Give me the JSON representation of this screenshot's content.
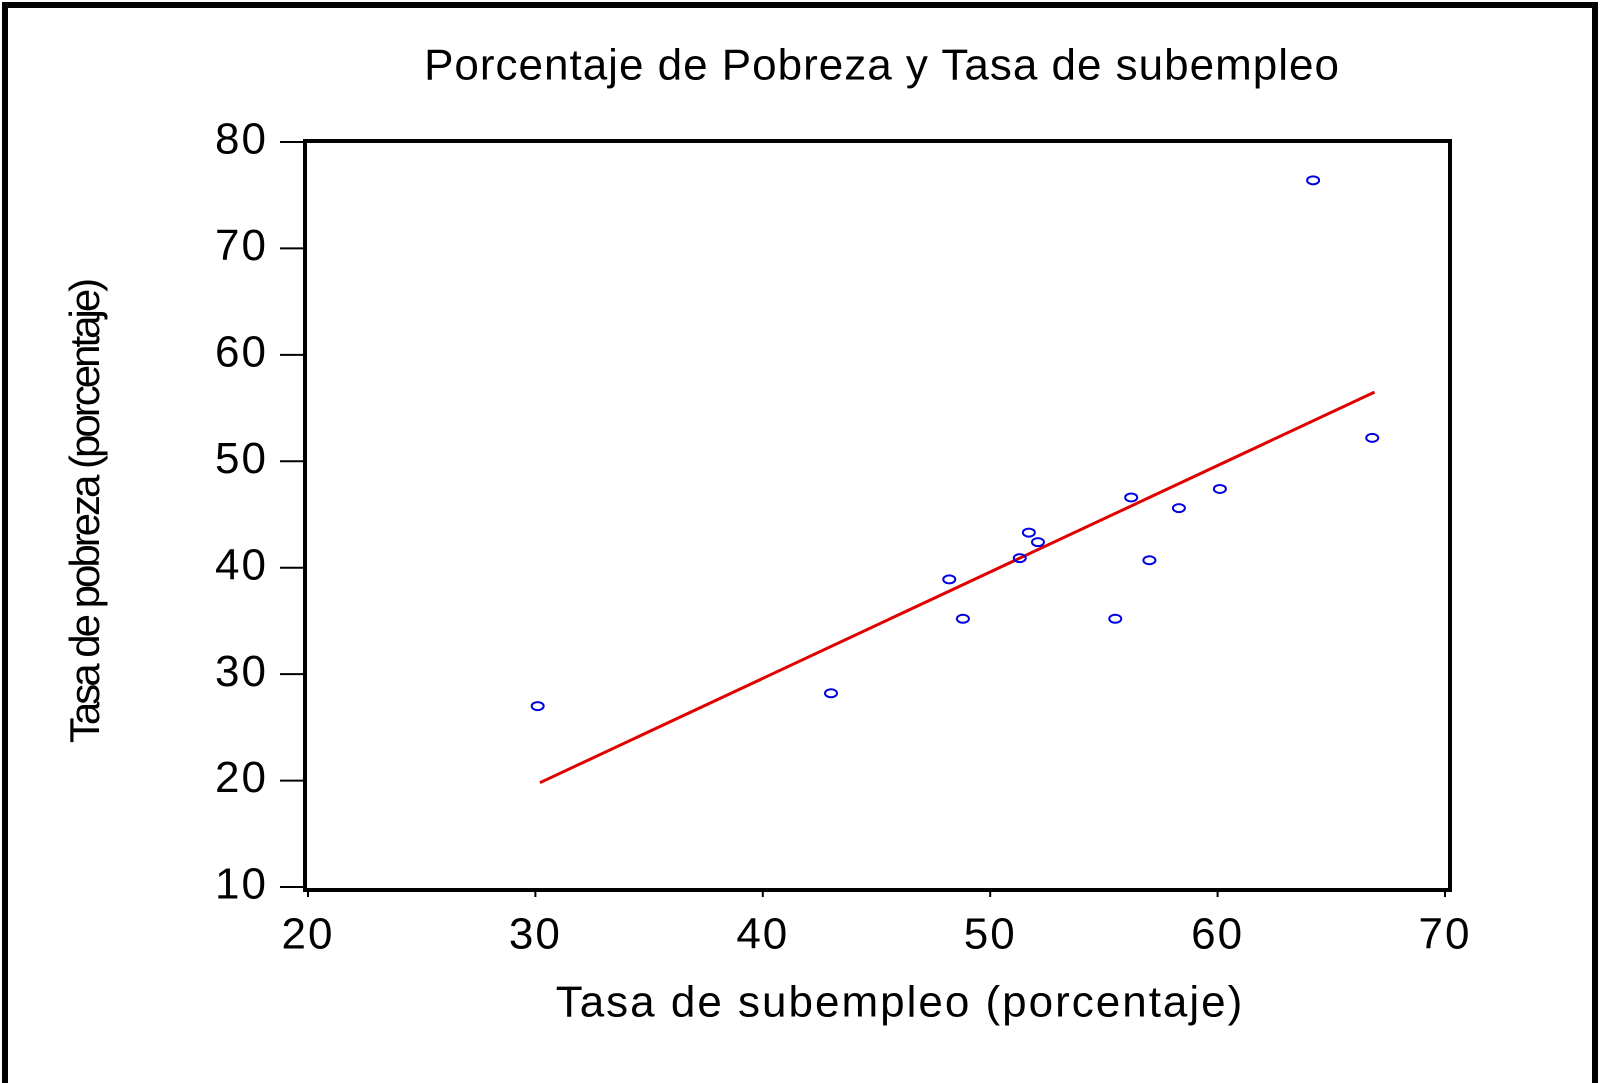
{
  "chart_data": {
    "type": "scatter",
    "title": "Porcentaje de Pobreza y Tasa de subempleo",
    "x_label": "Tasa de subempleo (porcentaje)",
    "y_label": "Tasa de pobreza (porcentaje)",
    "xlim": [
      20,
      70
    ],
    "ylim": [
      10,
      80
    ],
    "xticks": [
      20,
      30,
      40,
      50,
      60,
      70
    ],
    "yticks": [
      10,
      20,
      30,
      40,
      50,
      60,
      70,
      80
    ],
    "series": [
      {
        "color": "#0000e0",
        "x": [
          30.1,
          43.0,
          48.2,
          48.8,
          51.3,
          51.7,
          52.1,
          55.5,
          56.2,
          57.0,
          58.3,
          60.1,
          64.2,
          66.8
        ],
        "values": [
          27.0,
          28.2,
          38.9,
          35.2,
          40.9,
          43.3,
          42.4,
          35.2,
          46.6,
          40.7,
          45.6,
          47.4,
          76.4,
          52.2
        ]
      }
    ],
    "fit_line": {
      "color": "#e00000",
      "x": [
        30.2,
        66.9
      ],
      "values": [
        19.8,
        56.5
      ]
    }
  }
}
